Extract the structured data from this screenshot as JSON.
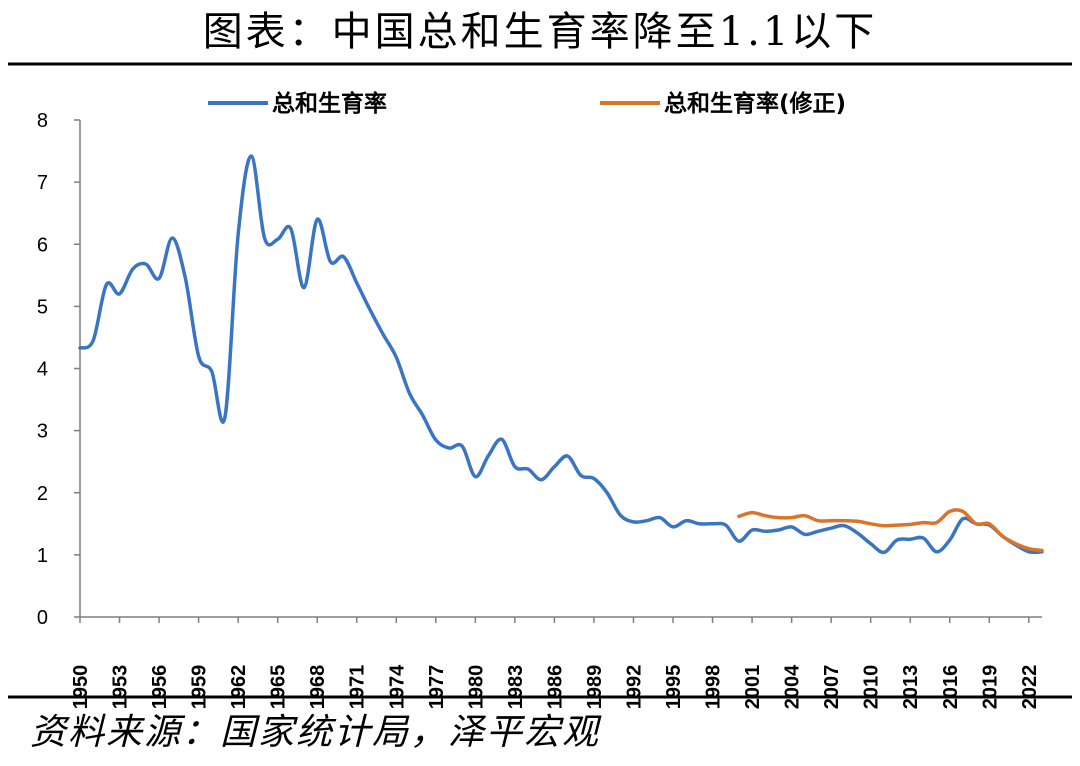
{
  "header": {
    "title": "图表：中国总和生育率降至1.1以下"
  },
  "footer": {
    "source": "资料来源：国家统计局，泽平宏观"
  },
  "chart_data": {
    "type": "line",
    "title": "图表：中国总和生育率降至1.1以下",
    "xlabel": "",
    "ylabel": "",
    "ylim": [
      0,
      8
    ],
    "yticks": [
      "0",
      "1",
      "2",
      "3",
      "4",
      "5",
      "6",
      "7",
      "8"
    ],
    "xlim": [
      1950,
      2023
    ],
    "xticks": [
      "1950",
      "1953",
      "1956",
      "1959",
      "1962",
      "1965",
      "1968",
      "1971",
      "1974",
      "1977",
      "1980",
      "1983",
      "1986",
      "1989",
      "1992",
      "1995",
      "1998",
      "2001",
      "2004",
      "2007",
      "2010",
      "2013",
      "2016",
      "2019",
      "2022"
    ],
    "grid": false,
    "legend": "top",
    "series": [
      {
        "name": "总和生育率",
        "color": "#3a75c4",
        "x": [
          1950,
          1951,
          1952,
          1953,
          1954,
          1955,
          1956,
          1957,
          1958,
          1959,
          1960,
          1961,
          1962,
          1963,
          1964,
          1965,
          1966,
          1967,
          1968,
          1969,
          1970,
          1971,
          1972,
          1973,
          1974,
          1975,
          1976,
          1977,
          1978,
          1979,
          1980,
          1981,
          1982,
          1983,
          1984,
          1985,
          1986,
          1987,
          1988,
          1989,
          1990,
          1991,
          1992,
          1993,
          1994,
          1995,
          1996,
          1997,
          1998,
          1999,
          2000,
          2001,
          2002,
          2003,
          2004,
          2005,
          2006,
          2007,
          2008,
          2009,
          2010,
          2011,
          2012,
          2013,
          2014,
          2015,
          2016,
          2017,
          2018,
          2019,
          2020,
          2021,
          2022,
          2023
        ],
        "values": [
          4.33,
          4.45,
          5.35,
          5.2,
          5.6,
          5.68,
          5.45,
          6.1,
          5.45,
          4.2,
          3.95,
          3.22,
          6.15,
          7.42,
          6.1,
          6.08,
          6.25,
          5.3,
          6.4,
          5.72,
          5.8,
          5.38,
          4.95,
          4.55,
          4.18,
          3.6,
          3.25,
          2.85,
          2.72,
          2.75,
          2.26,
          2.6,
          2.86,
          2.42,
          2.38,
          2.21,
          2.42,
          2.59,
          2.28,
          2.23,
          2.0,
          1.64,
          1.53,
          1.55,
          1.6,
          1.45,
          1.55,
          1.5,
          1.5,
          1.48,
          1.22,
          1.4,
          1.38,
          1.4,
          1.45,
          1.33,
          1.38,
          1.43,
          1.47,
          1.35,
          1.18,
          1.04,
          1.24,
          1.25,
          1.27,
          1.05,
          1.24,
          1.58,
          1.5,
          1.48,
          1.3,
          1.16,
          1.05,
          1.05
        ]
      },
      {
        "name": "总和生育率(修正)",
        "color": "#d9752a",
        "x": [
          2000,
          2001,
          2002,
          2003,
          2004,
          2005,
          2006,
          2007,
          2008,
          2009,
          2010,
          2011,
          2012,
          2013,
          2014,
          2015,
          2016,
          2017,
          2018,
          2019,
          2020,
          2021,
          2022,
          2023
        ],
        "values": [
          1.62,
          1.68,
          1.63,
          1.6,
          1.6,
          1.63,
          1.55,
          1.55,
          1.55,
          1.54,
          1.5,
          1.47,
          1.48,
          1.49,
          1.52,
          1.52,
          1.7,
          1.7,
          1.5,
          1.5,
          1.3,
          1.18,
          1.1,
          1.07
        ]
      }
    ]
  }
}
